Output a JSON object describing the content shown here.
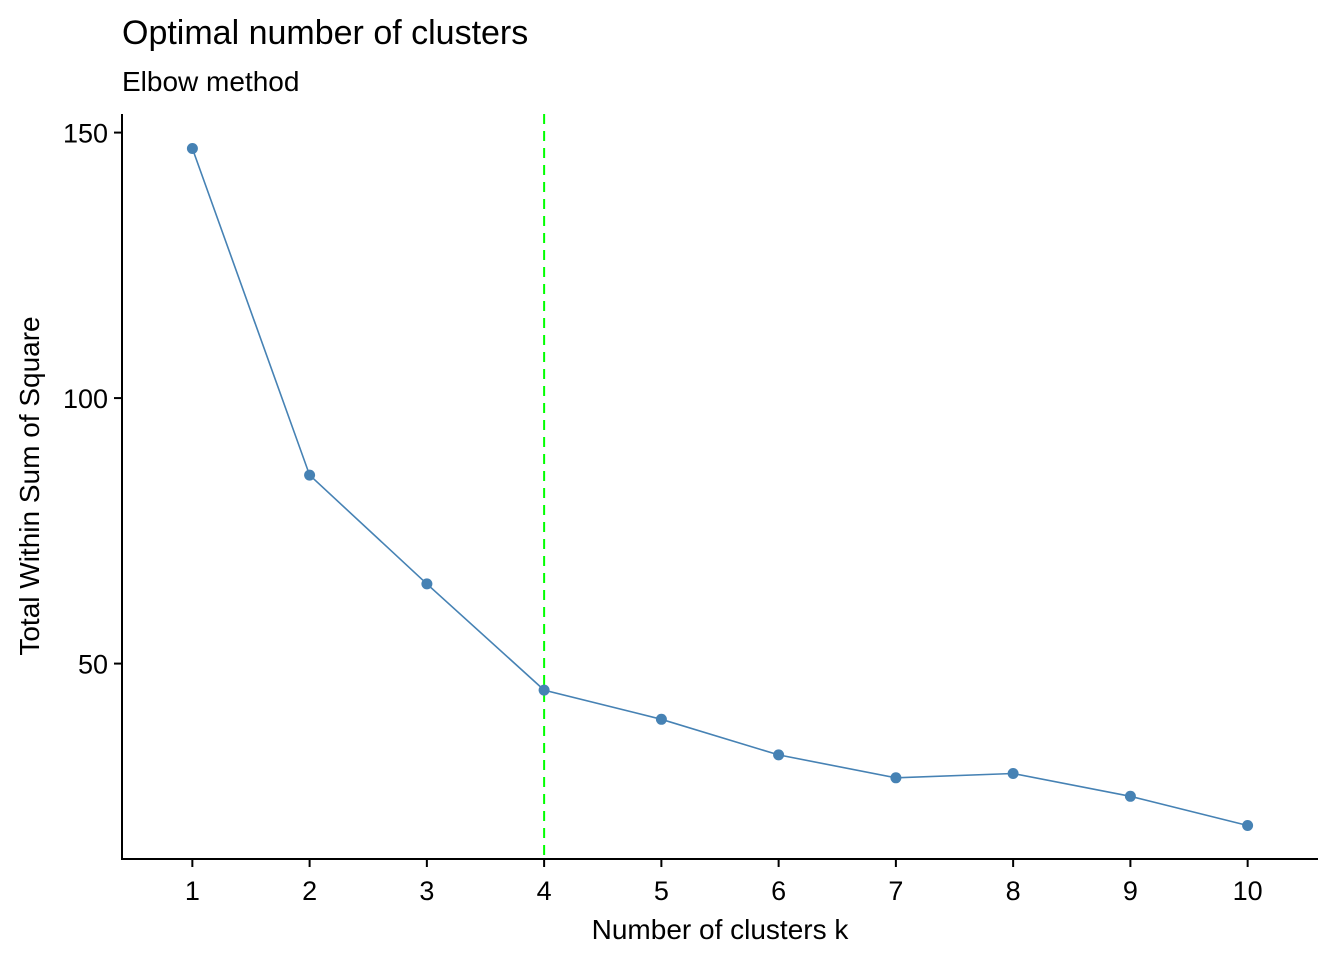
{
  "chart_data": {
    "type": "line",
    "title": "Optimal number of clusters",
    "subtitle": "Elbow method",
    "xlabel": "Number of clusters k",
    "ylabel": "Total Within Sum of Square",
    "categories": [
      "1",
      "2",
      "3",
      "4",
      "5",
      "6",
      "7",
      "8",
      "9",
      "10"
    ],
    "x": [
      1,
      2,
      3,
      4,
      5,
      6,
      7,
      8,
      9,
      10
    ],
    "series": [
      {
        "values": [
          147,
          85.5,
          65,
          45,
          39.5,
          32.8,
          28.5,
          29.3,
          25,
          19.5
        ],
        "color": "#4682B4"
      }
    ],
    "xlim": [
      0.4,
      10.6
    ],
    "ylim": [
      13.2,
      153.5
    ],
    "yticks": [
      50,
      100,
      150
    ],
    "reference_line": {
      "axis": "x",
      "value": 4,
      "style": "dashed",
      "color": "#00FF00"
    },
    "grid": false,
    "legend": "none"
  }
}
